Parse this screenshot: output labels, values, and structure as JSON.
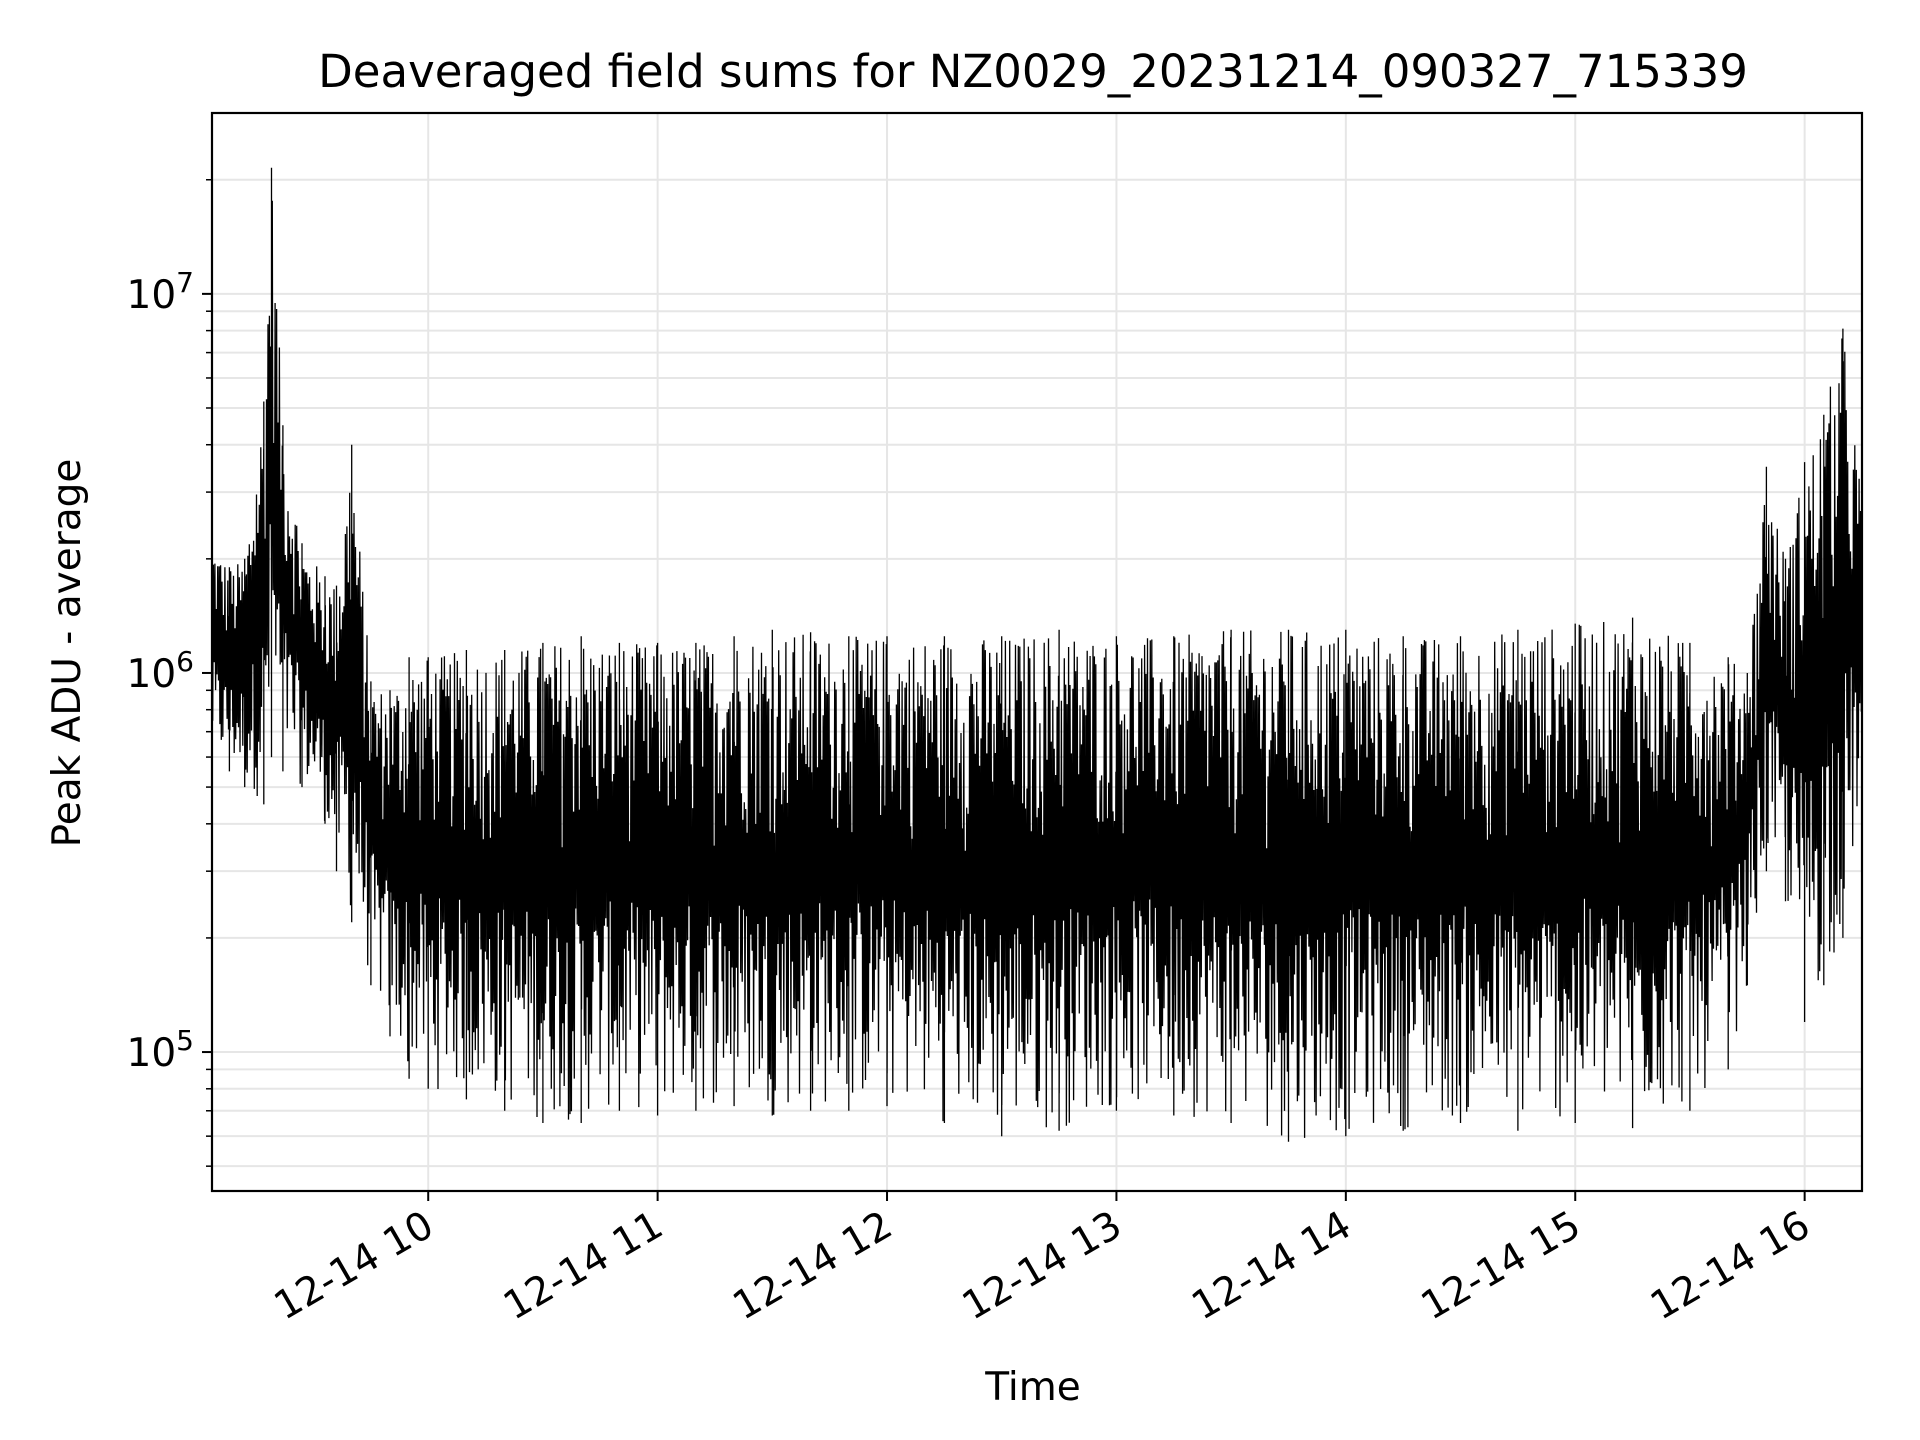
{
  "chart_data": {
    "type": "line",
    "title": "Deaveraged field sums for NZ0029_20231214_090327_715339",
    "xlabel": "Time",
    "ylabel": "Peak ADU - average",
    "x_axis": {
      "type": "time",
      "range": [
        "2023-12-14 09:03:27",
        "2023-12-14 16:15:00"
      ],
      "ticks": [
        {
          "value": "2023-12-14 10:00",
          "label": "12-14 10"
        },
        {
          "value": "2023-12-14 11:00",
          "label": "12-14 11"
        },
        {
          "value": "2023-12-14 12:00",
          "label": "12-14 12"
        },
        {
          "value": "2023-12-14 13:00",
          "label": "12-14 13"
        },
        {
          "value": "2023-12-14 14:00",
          "label": "12-14 14"
        },
        {
          "value": "2023-12-14 15:00",
          "label": "12-14 15"
        },
        {
          "value": "2023-12-14 16:00",
          "label": "12-14 16"
        }
      ]
    },
    "y_axis": {
      "scale": "log",
      "range": [
        43000,
        30000000
      ],
      "ticks": [
        {
          "value": 100000,
          "base": "10",
          "exp": "5"
        },
        {
          "value": 1000000,
          "base": "10",
          "exp": "6"
        },
        {
          "value": 10000000,
          "base": "10",
          "exp": "7"
        }
      ]
    },
    "grid": true,
    "line_color": "#000000",
    "grid_color": "#e6e6e6",
    "series": [
      {
        "x": [
          "2023-12-14 09:03",
          "2023-12-14 09:08",
          "2023-12-14 09:12",
          "2023-12-14 09:17",
          "2023-12-14 09:19",
          "2023-12-14 09:22",
          "2023-12-14 09:27",
          "2023-12-14 09:33",
          "2023-12-14 09:36",
          "2023-12-14 09:40",
          "2023-12-14 09:45",
          "2023-12-14 09:50",
          "2023-12-14 09:55",
          "2023-12-14 10:00",
          "2023-12-14 10:10",
          "2023-12-14 10:20",
          "2023-12-14 10:30",
          "2023-12-14 10:40",
          "2023-12-14 10:50",
          "2023-12-14 11:00",
          "2023-12-14 11:10",
          "2023-12-14 11:20",
          "2023-12-14 11:30",
          "2023-12-14 11:40",
          "2023-12-14 11:50",
          "2023-12-14 12:00",
          "2023-12-14 12:15",
          "2023-12-14 12:30",
          "2023-12-14 12:45",
          "2023-12-14 13:00",
          "2023-12-14 13:15",
          "2023-12-14 13:30",
          "2023-12-14 13:45",
          "2023-12-14 14:00",
          "2023-12-14 14:15",
          "2023-12-14 14:30",
          "2023-12-14 14:45",
          "2023-12-14 15:00",
          "2023-12-14 15:15",
          "2023-12-14 15:30",
          "2023-12-14 15:40",
          "2023-12-14 15:45",
          "2023-12-14 15:50",
          "2023-12-14 15:55",
          "2023-12-14 16:00",
          "2023-12-14 16:05",
          "2023-12-14 16:10",
          "2023-12-14 16:15"
        ],
        "low": [
          600000,
          550000,
          500000,
          450000,
          600000,
          550000,
          500000,
          400000,
          300000,
          220000,
          150000,
          110000,
          85000,
          80000,
          75000,
          70000,
          65000,
          65000,
          70000,
          68000,
          70000,
          72000,
          68000,
          70000,
          70000,
          72000,
          65000,
          60000,
          62000,
          70000,
          68000,
          65000,
          58000,
          60000,
          62000,
          65000,
          62000,
          65000,
          63000,
          70000,
          90000,
          150000,
          300000,
          250000,
          120000,
          150000,
          200000,
          450000
        ],
        "high": [
          2300000,
          1900000,
          2000000,
          5200000,
          21500000,
          4500000,
          2200000,
          1800000,
          1700000,
          4000000,
          950000,
          900000,
          1100000,
          1100000,
          1150000,
          1150000,
          1200000,
          1250000,
          1200000,
          1200000,
          1200000,
          1250000,
          1300000,
          1280000,
          1250000,
          1250000,
          1250000,
          1250000,
          1300000,
          1250000,
          1250000,
          1300000,
          1300000,
          1300000,
          1250000,
          1250000,
          1300000,
          1350000,
          1400000,
          1200000,
          1100000,
          1000000,
          3500000,
          2000000,
          3600000,
          4800000,
          8100000,
          3000000
        ]
      }
    ]
  }
}
